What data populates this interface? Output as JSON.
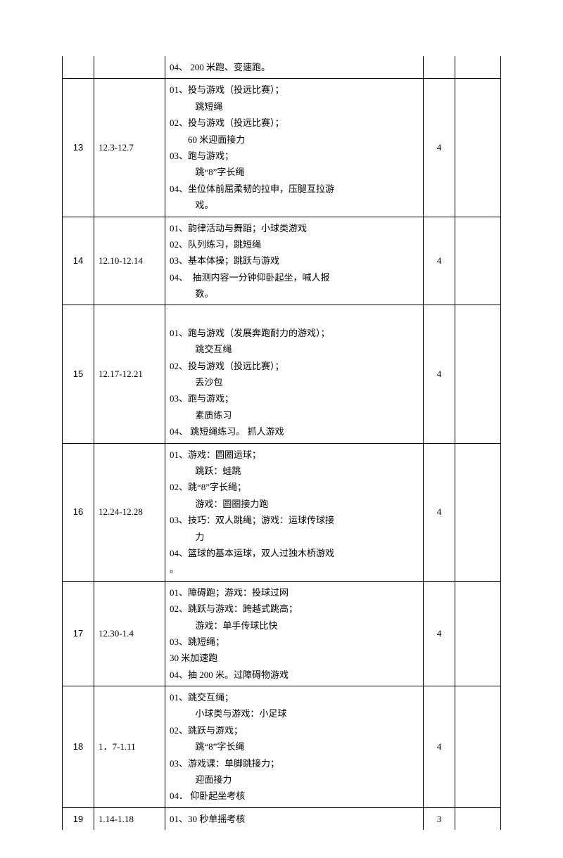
{
  "rows": [
    {
      "num": "",
      "date": "",
      "content_lines": [
        {
          "text": "04、 200 米跑、变速跑。",
          "cls": ""
        }
      ],
      "hours": "",
      "top_open": true
    },
    {
      "num": "13",
      "date": "12.3-12.7",
      "content_lines": [
        {
          "text": "01、投与游戏（投远比赛）；",
          "cls": ""
        },
        {
          "text": "跳短绳",
          "cls": "indent"
        },
        {
          "text": "02、投与游戏（投远比赛）；",
          "cls": ""
        },
        {
          "text": "60 米迎面接力",
          "cls": "indent2"
        },
        {
          "text": "03、跑与游戏；",
          "cls": ""
        },
        {
          "text": "跳“8”字长绳",
          "cls": "indent"
        },
        {
          "text": "04、坐位体前屈柔韧的拉申，压腿互拉游",
          "cls": ""
        },
        {
          "text": "戏。",
          "cls": "indent"
        }
      ],
      "hours": "4"
    },
    {
      "num": "14",
      "date": "12.10-12.14",
      "content_lines": [
        {
          "text": "01、韵律活动与舞蹈；小球类游戏",
          "cls": ""
        },
        {
          "text": "02、队列练习，跳短绳",
          "cls": ""
        },
        {
          "text": "03、基本体操；跳跃与游戏",
          "cls": ""
        },
        {
          "text": "04、　抽测内容一分钟仰卧起坐，喊人报",
          "cls": ""
        },
        {
          "text": "数。",
          "cls": "indent"
        }
      ],
      "hours": "4"
    },
    {
      "num": "15",
      "date": "12.17-12.21",
      "content_lines": [
        {
          "text": " ",
          "cls": ""
        },
        {
          "text": "01、跑与游戏（发展奔跑耐力的游戏）；",
          "cls": ""
        },
        {
          "text": "跳交互绳",
          "cls": "indent"
        },
        {
          "text": "02、投与游戏（投远比赛）；",
          "cls": ""
        },
        {
          "text": "丢沙包",
          "cls": "indent"
        },
        {
          "text": "03、跑与游戏；",
          "cls": ""
        },
        {
          "text": "素质练习",
          "cls": "indent"
        },
        {
          "text": "04、 跳短绳练习。 抓人游戏",
          "cls": ""
        }
      ],
      "hours": "4"
    },
    {
      "num": "16",
      "date": "12.24-12.28",
      "content_lines": [
        {
          "text": "01、游戏：圆圈运球；",
          "cls": ""
        },
        {
          "text": "跳跃：蛙跳",
          "cls": "indent"
        },
        {
          "text": "02、跳“8”字长绳；",
          "cls": ""
        },
        {
          "text": "游戏：圆圈接力跑",
          "cls": "indent"
        },
        {
          "text": "03、技巧：双人跳绳；游戏：运球传球接",
          "cls": ""
        },
        {
          "text": "力",
          "cls": "indent"
        },
        {
          "text": "04、篮球的基本运球，双人过独木桥游戏",
          "cls": ""
        },
        {
          "text": "。",
          "cls": ""
        }
      ],
      "hours": "4"
    },
    {
      "num": "17",
      "date": "12.30-1.4",
      "content_lines": [
        {
          "text": "01、障碍跑；游戏：投球过网",
          "cls": ""
        },
        {
          "text": "02、跳跃与游戏：跨越式跳高；",
          "cls": ""
        },
        {
          "text": "游戏：单手传球比快",
          "cls": "indent"
        },
        {
          "text": "03、跳短绳；",
          "cls": ""
        },
        {
          "text": "30 米加速跑",
          "cls": ""
        },
        {
          "text": "04、抽 200 米。过障碍物游戏",
          "cls": ""
        }
      ],
      "hours": "4"
    },
    {
      "num": "18",
      "date": "1．7-1.11",
      "content_lines": [
        {
          "text": "01、跳交互绳；",
          "cls": ""
        },
        {
          "text": "小球类与游戏：小足球",
          "cls": "indent"
        },
        {
          "text": "02、跳跃与游戏；",
          "cls": ""
        },
        {
          "text": "跳“8”字长绳",
          "cls": "indent"
        },
        {
          "text": "03、游戏课：单脚跳接力；",
          "cls": ""
        },
        {
          "text": "迎面接力",
          "cls": "indent"
        },
        {
          "text": "04． 仰卧起坐考核",
          "cls": ""
        }
      ],
      "hours": "4"
    },
    {
      "num": "19",
      "date": "1.14-1.18",
      "content_lines": [
        {
          "text": "01、30 秒单摇考核",
          "cls": ""
        }
      ],
      "hours": "3",
      "bottom_open": true
    }
  ]
}
